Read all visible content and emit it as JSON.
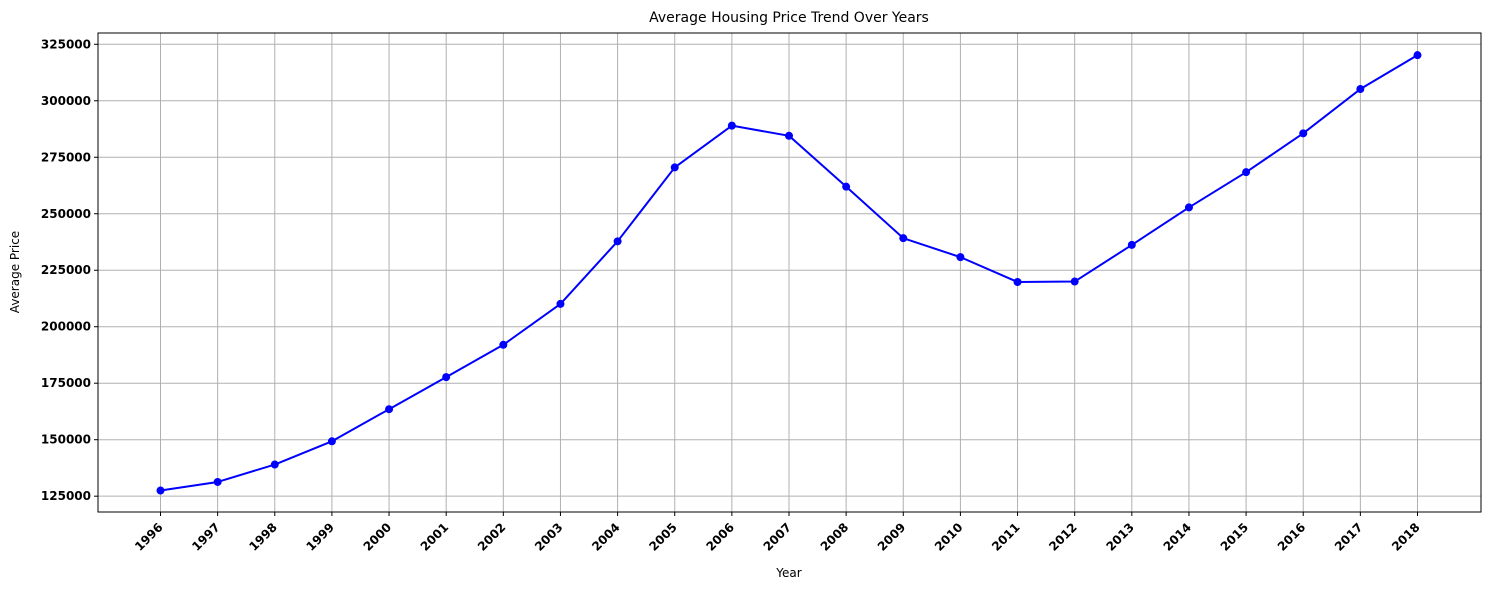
{
  "chart_data": {
    "type": "line",
    "title": "Average Housing Price Trend Over Years",
    "xlabel": "Year",
    "ylabel": "Average Price",
    "categories": [
      "1996",
      "1997",
      "1998",
      "1999",
      "2000",
      "2001",
      "2002",
      "2003",
      "2004",
      "2005",
      "2006",
      "2007",
      "2008",
      "2009",
      "2010",
      "2011",
      "2012",
      "2013",
      "2014",
      "2015",
      "2016",
      "2017",
      "2018"
    ],
    "series": [
      {
        "values": [
          127500,
          131300,
          139000,
          149300,
          163500,
          177700,
          192000,
          210100,
          237800,
          270500,
          289000,
          284500,
          262000,
          239200,
          230800,
          219800,
          220000,
          236200,
          252800,
          268400,
          285600,
          305200,
          320200
        ],
        "color": "#0000ff",
        "marker": "circle"
      }
    ],
    "yticks": [
      125000,
      150000,
      175000,
      200000,
      225000,
      250000,
      275000,
      300000,
      325000
    ],
    "ylim": [
      118000,
      330000
    ],
    "grid": true,
    "xtick_rotation": 45
  }
}
